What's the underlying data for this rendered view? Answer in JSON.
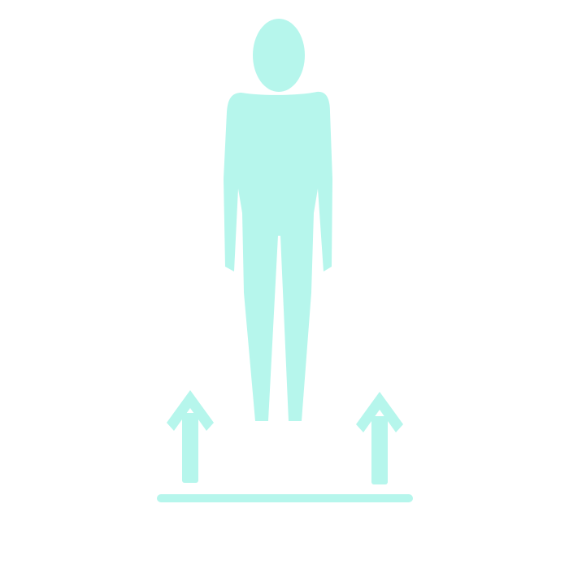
{
  "illustration": {
    "subject": "person-standing-icon",
    "decorations": [
      "arrow-up-icon",
      "arrow-up-icon",
      "ground-line"
    ],
    "colors": {
      "figure": "#b6f6ec",
      "background": "#ffffff"
    }
  }
}
